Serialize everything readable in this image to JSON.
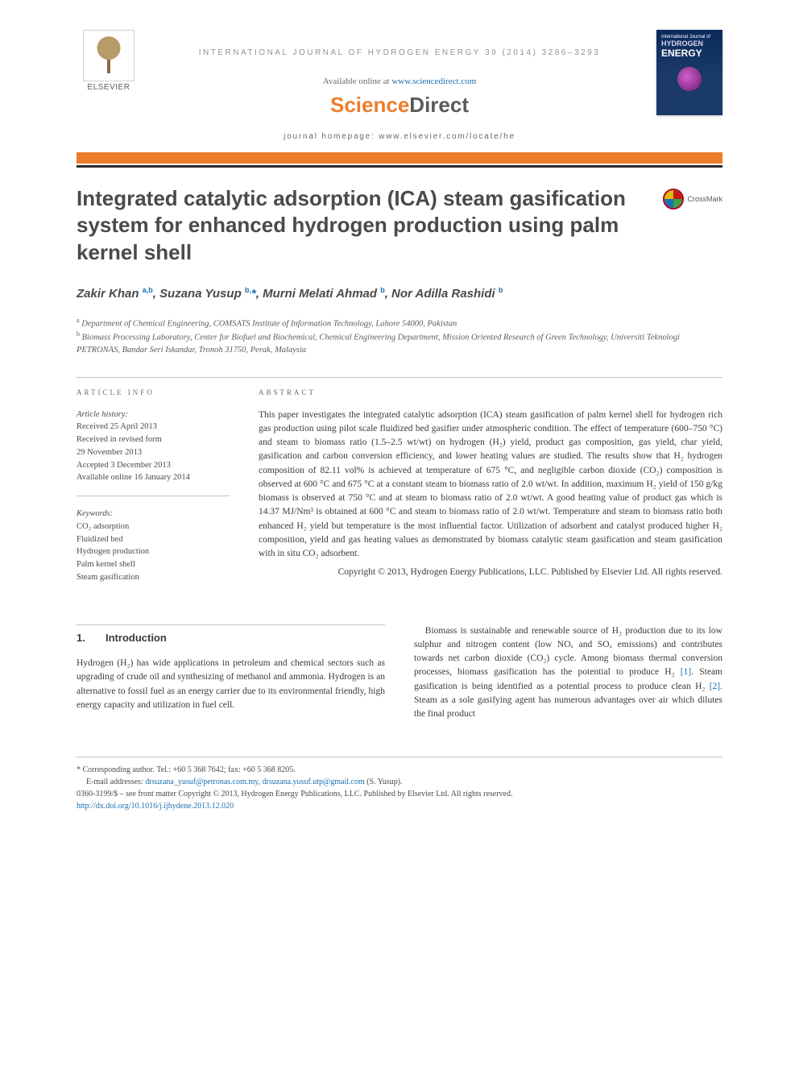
{
  "running_head": "INTERNATIONAL JOURNAL OF HYDROGEN ENERGY 39 (2014) 3286–3293",
  "available_text": "Available online at ",
  "available_link": "www.sciencedirect.com",
  "sciencedirect": {
    "part1": "Science",
    "part2": "Direct"
  },
  "elsevier_label": "ELSEVIER",
  "homepage_line": "journal homepage: www.elsevier.com/locate/he",
  "cover": {
    "line1": "International Journal of",
    "line2": "HYDROGEN",
    "line3": "ENERGY"
  },
  "crossmark_label": "CrossMark",
  "title": "Integrated catalytic adsorption (ICA) steam gasification system for enhanced hydrogen production using palm kernel shell",
  "authors_html": "Zakir Khan <sup>a,b</sup>, Suzana Yusup <sup>b,</sup><span class='corr'>*</span>, Murni Melati Ahmad <sup>b</sup>, Nor Adilla Rashidi <sup>b</sup>",
  "affiliations": {
    "a": "Department of Chemical Engineering, COMSATS Institute of Information Technology, Lahore 54000, Pakistan",
    "b": "Biomass Processing Laboratory, Center for Biofuel and Biochemical, Chemical Engineering Department, Mission Oriented Research of Green Technology, Universiti Teknologi PETRONAS, Bandar Seri Iskandar, Tronoh 31750, Perak, Malaysia"
  },
  "article_info": {
    "label": "ARTICLE INFO",
    "history_label": "Article history:",
    "received": "Received 25 April 2013",
    "revised1": "Received in revised form",
    "revised2": "29 November 2013",
    "accepted": "Accepted 3 December 2013",
    "online": "Available online 16 January 2014",
    "keywords_label": "Keywords:",
    "keywords": [
      "CO₂ adsorption",
      "Fluidized bed",
      "Hydrogen production",
      "Palm kernel shell",
      "Steam gasification"
    ]
  },
  "abstract": {
    "label": "ABSTRACT",
    "text": "This paper investigates the integrated catalytic adsorption (ICA) steam gasification of palm kernel shell for hydrogen rich gas production using pilot scale fluidized bed gasifier under atmospheric condition. The effect of temperature (600–750 °C) and steam to biomass ratio (1.5–2.5 wt/wt) on hydrogen (H₂) yield, product gas composition, gas yield, char yield, gasification and carbon conversion efficiency, and lower heating values are studied. The results show that H₂ hydrogen composition of 82.11 vol% is achieved at temperature of 675 °C, and negligible carbon dioxide (CO₂) composition is observed at 600 °C and 675 °C at a constant steam to biomass ratio of 2.0 wt/wt. In addition, maximum H₂ yield of 150 g/kg biomass is observed at 750 °C and at steam to biomass ratio of 2.0 wt/wt. A good heating value of product gas which is 14.37 MJ/Nm³ is obtained at 600 °C and steam to biomass ratio of 2.0 wt/wt. Temperature and steam to biomass ratio both enhanced H₂ yield but temperature is the most influential factor. Utilization of adsorbent and catalyst produced higher H₂ composition, yield and gas heating values as demonstrated by biomass catalytic steam gasification and steam gasification with in situ CO₂ adsorbent.",
    "copyright": "Copyright © 2013, Hydrogen Energy Publications, LLC. Published by Elsevier Ltd. All rights reserved."
  },
  "section1": {
    "num": "1.",
    "title": "Introduction",
    "col_left": "Hydrogen (H₂) has wide applications in petroleum and chemical sectors such as upgrading of crude oil and synthesizing of methanol and ammonia. Hydrogen is an alternative to fossil fuel as an energy carrier due to its environmental friendly, high energy capacity and utilization in fuel cell.",
    "col_right_1": "Biomass is sustainable and renewable source of H₂ production due to its low sulphur and nitrogen content (low NOₓ and SOₓ emissions) and contributes towards net carbon dioxide (CO₂) cycle. Among biomass thermal conversion processes, biomass gasification has the potential to produce H₂ ",
    "ref1": "[1]",
    "col_right_2": ". Steam gasification is being identified as a potential process to produce clean H₂ ",
    "ref2": "[2]",
    "col_right_3": ". Steam as a sole gasifying agent has numerous advantages over air which dilutes the final product"
  },
  "footer": {
    "corr": "* Corresponding author. Tel.: +60 5 368 7642; fax: +60 5 368 8205.",
    "email_label": "E-mail addresses: ",
    "email1": "drsuzana_yusuf@petronas.com.my",
    "email_sep": ", ",
    "email2": "drsuzana.yusuf.utp@gmail.com",
    "email_after": " (S. Yusup).",
    "issn": "0360-3199/$ – see front matter Copyright © 2013, Hydrogen Energy Publications, LLC. Published by Elsevier Ltd. All rights reserved.",
    "doi": "http://dx.doi.org/10.1016/j.ijhydene.2013.12.020"
  },
  "colors": {
    "accent_orange": "#ee7d2b",
    "link_blue": "#1a6fb0",
    "text_grey": "#4a4a4a"
  }
}
